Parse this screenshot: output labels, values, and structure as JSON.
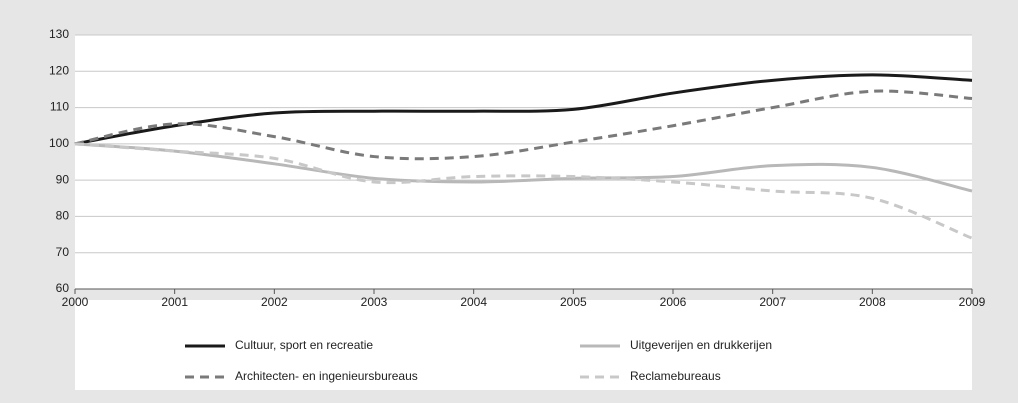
{
  "chart_data": {
    "type": "line",
    "x": [
      2000,
      2001,
      2002,
      2003,
      2004,
      2005,
      2006,
      2007,
      2008,
      2009
    ],
    "xlim": [
      2000,
      2009
    ],
    "xticks": [
      2000,
      2001,
      2002,
      2003,
      2004,
      2005,
      2006,
      2007,
      2008,
      2009
    ],
    "ylim": [
      60,
      130
    ],
    "yticks": [
      60,
      70,
      80,
      90,
      100,
      110,
      120,
      130
    ],
    "grid": true,
    "legend": "bottom",
    "series": [
      {
        "name": "Cultuur, sport en recreatie",
        "color": "#1a1a1a",
        "dashed": false,
        "values": [
          100,
          105,
          108.5,
          109,
          109,
          109.5,
          114,
          117.5,
          119,
          117.5
        ]
      },
      {
        "name": "Uitgeverijen en drukkerijen",
        "color": "#b8b8b8",
        "dashed": false,
        "values": [
          100,
          98,
          94.5,
          90.5,
          89.5,
          90.5,
          91,
          94,
          93.5,
          87
        ]
      },
      {
        "name": "Architecten- en ingenieursbureaus",
        "color": "#7a7a7a",
        "dashed": true,
        "values": [
          100,
          105.5,
          102,
          96.5,
          96.5,
          100.5,
          105,
          110,
          114.5,
          112.5
        ]
      },
      {
        "name": "Reclamebureaus",
        "color": "#c8c8c8",
        "dashed": true,
        "values": [
          100,
          98,
          96,
          89.5,
          91,
          91,
          89.5,
          87,
          85,
          74
        ]
      }
    ]
  }
}
